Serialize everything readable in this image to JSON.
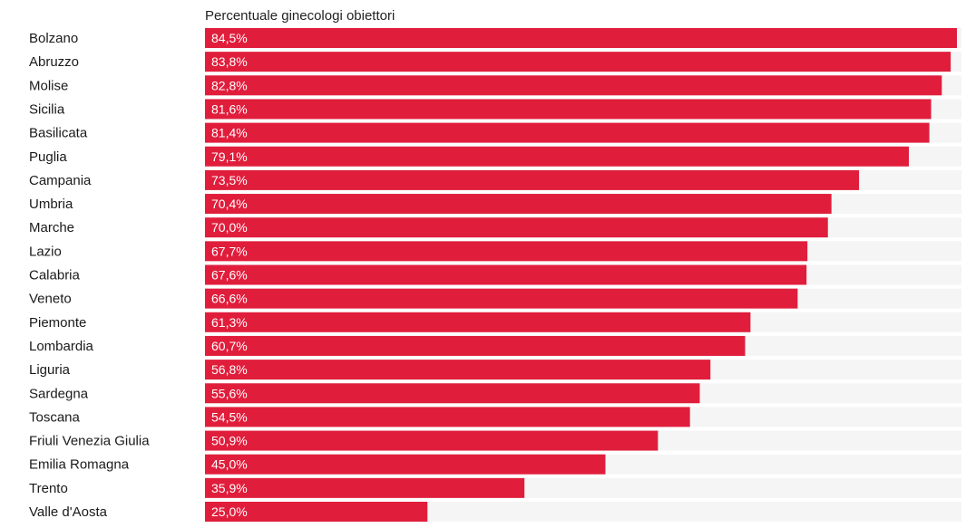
{
  "chart_data": {
    "type": "bar",
    "orientation": "horizontal",
    "title": "",
    "series": [
      {
        "name": "Percentuale ginecologi obiettori",
        "values": [
          84.5,
          83.8,
          82.8,
          81.6,
          81.4,
          79.1,
          73.5,
          70.4,
          70.0,
          67.7,
          67.6,
          66.6,
          61.3,
          60.7,
          56.8,
          55.6,
          54.5,
          50.9,
          45.0,
          35.9,
          25.0
        ]
      }
    ],
    "categories": [
      "Bolzano",
      "Abruzzo",
      "Molise",
      "Sicilia",
      "Basilicata",
      "Puglia",
      "Campania",
      "Umbria",
      "Marche",
      "Lazio",
      "Calabria",
      "Veneto",
      "Piemonte",
      "Lombardia",
      "Liguria",
      "Sardegna",
      "Toscana",
      "Friuli Venezia Giulia",
      "Emilia Romagna",
      "Trento",
      "Valle d'Aosta"
    ],
    "value_labels": [
      "84,5%",
      "83,8%",
      "82,8%",
      "81,6%",
      "81,4%",
      "79,1%",
      "73,5%",
      "70,4%",
      "70,0%",
      "67,7%",
      "67,6%",
      "66,6%",
      "61,3%",
      "60,7%",
      "56,8%",
      "55,6%",
      "54,5%",
      "50,9%",
      "45,0%",
      "35,9%",
      "25,0%"
    ],
    "xlim": [
      0,
      84.5
    ],
    "grid": false,
    "legend": "none",
    "bar_color": "#e01e3c",
    "track_color": "#f5f5f5"
  }
}
